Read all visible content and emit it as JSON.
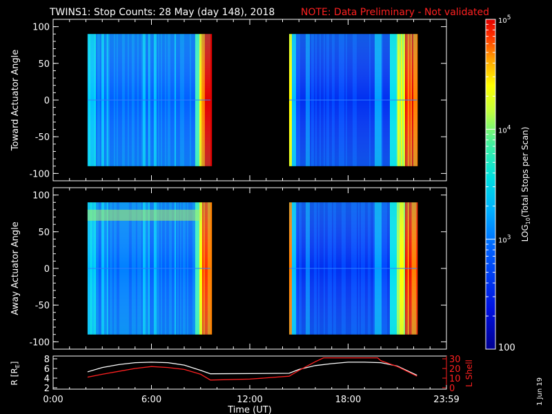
{
  "header": {
    "title": "TWINS1: Stop Counts: 28 May (day 148), 2018",
    "note": "NOTE: Data Preliminary - Not validated"
  },
  "side_date": "1 Jun 19",
  "colors": {
    "background": "#000000",
    "axis": "#ffffff",
    "r_line": "#ffffff",
    "lshell_line": "#ff2020",
    "note": "#ff2020"
  },
  "chart_data": [
    {
      "type": "heatmap",
      "ylabel": "Toward Actuator Angle",
      "ylim": [
        -110,
        110
      ],
      "yticks": [
        -100,
        -50,
        0,
        50,
        100
      ],
      "y_extent": [
        -90,
        90
      ],
      "xlim": [
        0,
        24
      ],
      "x_segments": [
        [
          2.1,
          9.6
        ],
        [
          14.4,
          22.2
        ]
      ],
      "colorscale": "log",
      "ylabel_index": 0
    },
    {
      "type": "heatmap",
      "ylabel": "Away Actuator Angle",
      "ylim": [
        -110,
        110
      ],
      "yticks": [
        -100,
        -50,
        0,
        50,
        100
      ],
      "y_extent": [
        -90,
        90
      ],
      "xlim": [
        0,
        24
      ],
      "x_segments": [
        [
          2.1,
          9.6
        ],
        [
          14.4,
          22.2
        ]
      ],
      "colorscale": "log",
      "ylabel_index": 1
    },
    {
      "type": "line",
      "xlabel": "Time (UT)",
      "xticks": [
        "0:00",
        "6:00",
        "12:00",
        "18:00",
        "23:59"
      ],
      "xlim": [
        0,
        24
      ],
      "ylabel_left": "R [RE]",
      "ylim_left": [
        2,
        8
      ],
      "yticks_left": [
        2,
        4,
        6,
        8
      ],
      "ylabel_right": "L Shell",
      "ylim_right": [
        0,
        30
      ],
      "yticks_right": [
        0,
        10,
        20,
        30
      ],
      "series": [
        {
          "axis": "left",
          "x": [
            2.1,
            3,
            4,
            5,
            6,
            7,
            8,
            9,
            9.6,
            14.4,
            15,
            16,
            17,
            18,
            19,
            20,
            21,
            22.2
          ],
          "values": [
            5.3,
            6.2,
            6.8,
            7.2,
            7.3,
            7.2,
            6.7,
            5.6,
            4.9,
            5.0,
            5.8,
            6.6,
            7.0,
            7.3,
            7.3,
            7.2,
            6.5,
            4.6
          ]
        },
        {
          "axis": "right",
          "x": [
            2.1,
            3,
            4,
            5,
            6,
            7,
            8,
            9,
            9.6,
            12,
            14.4,
            15,
            16,
            16.5,
            19.8,
            20,
            21,
            22.2
          ],
          "values": [
            11,
            14,
            17,
            20,
            22,
            21,
            19,
            14,
            8,
            9,
            12,
            18,
            27,
            31,
            31,
            28,
            22,
            12
          ]
        }
      ]
    },
    {
      "type": "colorbar",
      "label": "LOG10(Total Stops per Scan)",
      "label_main": "LOG",
      "label_sub": "10",
      "label_rest": "(Total Stops per Scan)",
      "scale": "log",
      "range": [
        100,
        100000
      ],
      "ticks": [
        {
          "value": 100,
          "base": "100",
          "exp": ""
        },
        {
          "value": 1000,
          "base": "10",
          "exp": "3"
        },
        {
          "value": 10000,
          "base": "10",
          "exp": "4"
        },
        {
          "value": 100000,
          "base": "10",
          "exp": "5"
        }
      ]
    }
  ]
}
